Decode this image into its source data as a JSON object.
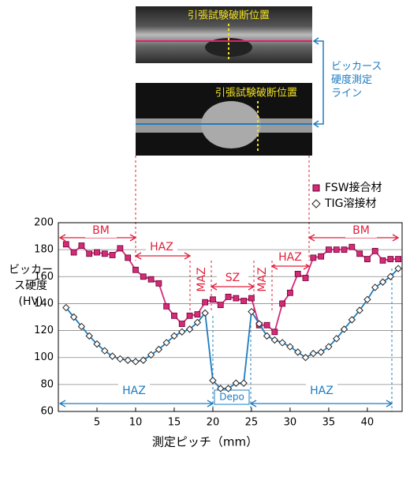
{
  "figure": {
    "image_labels": [
      "引張試験破断位置",
      "引張試験破断位置"
    ],
    "line_note": "ビッカース\n硬度測定\nライン"
  },
  "chart_data": {
    "type": "line",
    "x_label": "測定ピッチ（mm）",
    "y_label": "ビッカース硬度(HV)",
    "x": [
      1,
      2,
      3,
      4,
      5,
      6,
      7,
      8,
      9,
      10,
      11,
      12,
      13,
      14,
      15,
      16,
      17,
      18,
      19,
      20,
      21,
      22,
      23,
      24,
      25,
      26,
      27,
      28,
      29,
      30,
      31,
      32,
      33,
      34,
      35,
      36,
      37,
      38,
      39,
      40,
      41,
      42,
      43,
      44
    ],
    "series": [
      {
        "name": "FSW接合材",
        "color": "#d42a78",
        "marker": "square",
        "values": [
          184,
          178,
          183,
          177,
          178,
          177,
          176,
          181,
          174,
          165,
          160,
          158,
          155,
          138,
          131,
          125,
          131,
          132,
          141,
          143,
          139,
          145,
          144,
          142,
          144,
          124,
          124,
          119,
          140,
          148,
          162,
          159,
          174,
          175,
          180,
          180,
          180,
          182,
          177,
          173,
          179,
          172,
          173,
          173
        ]
      },
      {
        "name": "TIG溶接材",
        "color": "#1d7cc0",
        "marker": "diamond",
        "values": [
          137,
          130,
          123,
          116,
          110,
          105,
          101,
          99,
          98,
          97,
          98,
          102,
          106,
          111,
          116,
          119,
          121,
          126,
          133,
          83,
          77,
          77,
          81,
          81,
          134,
          125,
          116,
          113,
          111,
          108,
          104,
          100,
          103,
          104,
          108,
          114,
          121,
          128,
          135,
          143,
          152,
          156,
          160,
          166
        ]
      }
    ],
    "xlim": [
      0,
      44.5
    ],
    "ylim": [
      60,
      200
    ],
    "xticks": [
      5,
      10,
      15,
      20,
      25,
      30,
      35,
      40
    ],
    "yticks": [
      60,
      80,
      100,
      120,
      140,
      160,
      180,
      200
    ],
    "grid": true,
    "annotations": [
      {
        "text": "BM",
        "color": "#e0203c"
      },
      {
        "text": "HAZ",
        "color": "#e0203c"
      },
      {
        "text": "MAZ",
        "color": "#e0203c"
      },
      {
        "text": "SZ",
        "color": "#e0203c"
      },
      {
        "text": "MAZ",
        "color": "#e0203c"
      },
      {
        "text": "HAZ",
        "color": "#e0203c"
      },
      {
        "text": "BM",
        "color": "#e0203c"
      },
      {
        "text": "HAZ",
        "color": "#1d7cc0"
      },
      {
        "text": "Depo",
        "color": "#1d7cc0"
      },
      {
        "text": "HAZ",
        "color": "#1d7cc0"
      }
    ]
  }
}
